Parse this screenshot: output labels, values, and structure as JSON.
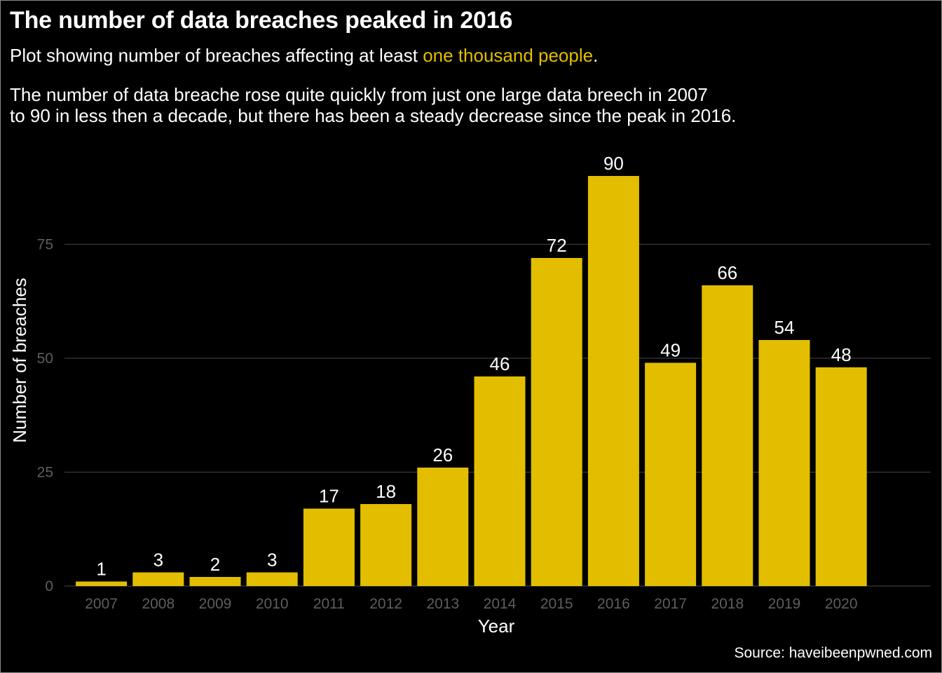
{
  "header": {
    "title": "The number of data breaches peaked in 2016",
    "subtitle_prefix": "Plot showing number of breaches affecting at least ",
    "subtitle_highlight": "one thousand people",
    "subtitle_suffix": ".",
    "description_line1": "The number of data breache rose quite quickly from just one large data breech in 2007",
    "description_line2": "to 90 in less then a decade, but there has been a steady decrease since the peak in 2016."
  },
  "source": "Source: haveibeenpwned.com",
  "colors": {
    "background": "#000000",
    "bar": "#e3be00",
    "highlight_text": "#e3be00",
    "grid": "#3a3a3a",
    "tick_text": "#5e5e5e",
    "text": "#ffffff"
  },
  "chart_data": {
    "type": "bar",
    "categories": [
      "2007",
      "2008",
      "2009",
      "2010",
      "2011",
      "2012",
      "2013",
      "2014",
      "2015",
      "2016",
      "2017",
      "2018",
      "2019",
      "2020"
    ],
    "values": [
      1,
      3,
      2,
      3,
      17,
      18,
      26,
      46,
      72,
      90,
      49,
      66,
      54,
      48
    ],
    "xlabel": "Year",
    "ylabel": "Number of breaches",
    "ylim": [
      0,
      95
    ],
    "yticks": [
      0,
      25,
      50,
      75
    ],
    "grid": "horizontal",
    "data_labels": true,
    "legend": "none"
  }
}
